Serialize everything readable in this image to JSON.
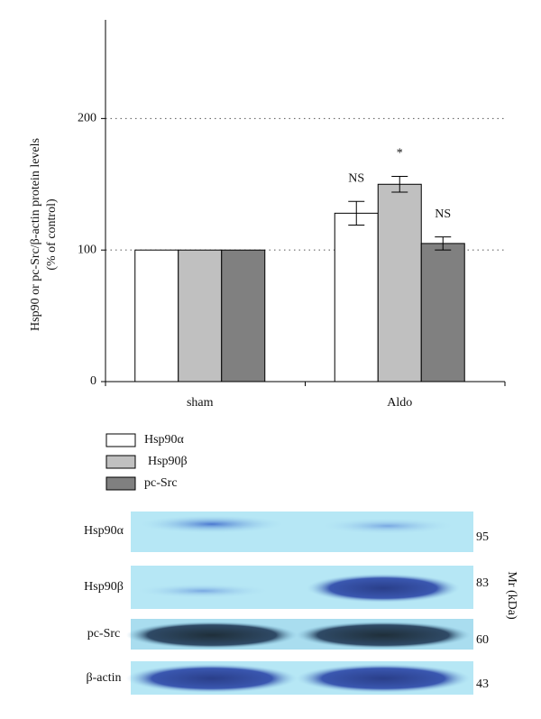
{
  "chart_data": {
    "type": "bar",
    "ylabel": [
      "Hsp90 or pc-Src/β-actin protein levels",
      "(% of control)"
    ],
    "categories": [
      "sham",
      "Aldo"
    ],
    "series": [
      {
        "name": "Hsp90α",
        "color": "#ffffff",
        "values": [
          100,
          128
        ],
        "errors": [
          null,
          9
        ],
        "annotations": [
          null,
          "NS"
        ]
      },
      {
        "name": "Hsp90β",
        "color": "#c0c0c0",
        "values": [
          100,
          150
        ],
        "errors": [
          null,
          6
        ],
        "annotations": [
          null,
          "*"
        ]
      },
      {
        "name": "pc-Src",
        "color": "#808080",
        "values": [
          100,
          105
        ],
        "errors": [
          null,
          5
        ],
        "annotations": [
          null,
          "NS"
        ]
      }
    ],
    "ylim": [
      0,
      275
    ],
    "yticks": [
      0,
      100,
      200
    ],
    "grid": true
  },
  "blot": {
    "rows": [
      {
        "label": "Hsp90α",
        "mw": 95
      },
      {
        "label": "Hsp90β",
        "mw": 83
      },
      {
        "label": "pc-Src",
        "mw": 60
      },
      {
        "label": "β-actin",
        "mw": 43
      }
    ],
    "mw_axis": "Mr (kDa)"
  }
}
